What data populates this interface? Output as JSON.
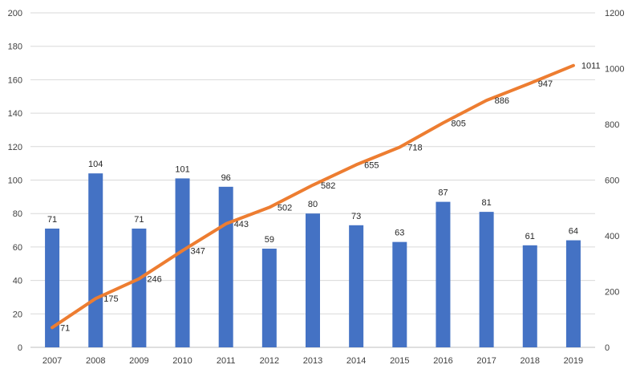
{
  "chart_data": {
    "type": "bar",
    "categories": [
      "2007",
      "2008",
      "2009",
      "2010",
      "2011",
      "2012",
      "2013",
      "2014",
      "2015",
      "2016",
      "2017",
      "2018",
      "2019"
    ],
    "series": [
      {
        "type": "bar",
        "axis": "left",
        "values": [
          71,
          104,
          71,
          101,
          96,
          59,
          80,
          73,
          63,
          87,
          81,
          61,
          64
        ],
        "color": "#4472c4"
      },
      {
        "type": "line",
        "axis": "right",
        "values": [
          71,
          175,
          246,
          347,
          443,
          502,
          582,
          655,
          718,
          805,
          886,
          947,
          1011
        ],
        "color": "#ed7d31"
      }
    ],
    "ylim_left": [
      0,
      200
    ],
    "yticks_left": [
      "0",
      "20",
      "40",
      "60",
      "80",
      "100",
      "120",
      "140",
      "160",
      "180",
      "200"
    ],
    "ylim_right": [
      0,
      1200
    ],
    "yticks_right": [
      "0",
      "200",
      "400",
      "600",
      "800",
      "1000",
      "1200"
    ],
    "grid": true,
    "legend": "none",
    "data_labels": true
  }
}
